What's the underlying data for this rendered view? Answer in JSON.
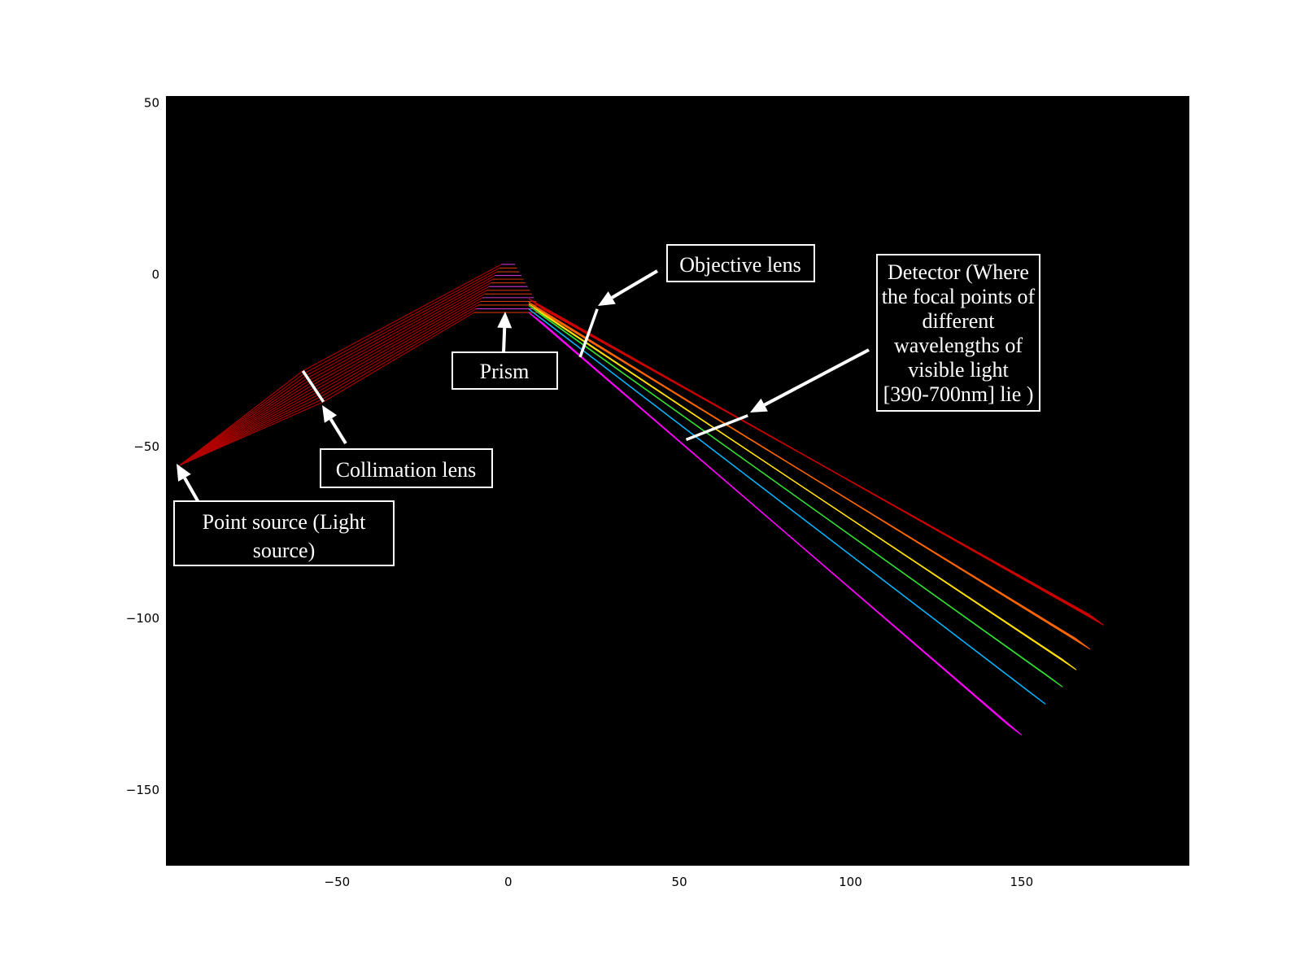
{
  "chart_data": {
    "type": "scatter",
    "title": "",
    "xlabel": "",
    "ylabel": "",
    "xlim": [
      -100,
      199
    ],
    "ylim": [
      -172,
      52
    ],
    "xticks": [
      "−50",
      "0",
      "50",
      "100",
      "150"
    ],
    "yticks": [
      "50",
      "0",
      "−50",
      "−100",
      "−150"
    ],
    "background": "#000000",
    "source_point": [
      -96,
      -55.5
    ],
    "collimation_lens": [
      [
        -60,
        -28
      ],
      [
        -54,
        -37
      ]
    ],
    "prism": {
      "apex": [
        0,
        3
      ],
      "base_y": -11
    },
    "objective_lens": [
      [
        21,
        -24
      ],
      [
        26,
        -10
      ]
    ],
    "detector": [
      [
        52,
        -48
      ],
      [
        70,
        -41
      ]
    ],
    "beams": [
      {
        "color": "#cc0000",
        "start": [
          10,
          -10
        ],
        "end": [
          174,
          -100
        ]
      },
      {
        "color": "#ff6600",
        "start": [
          10,
          -11
        ],
        "end": [
          170,
          -107
        ]
      },
      {
        "color": "#ffdd00",
        "start": [
          10,
          -11.5
        ],
        "end": [
          166,
          -113
        ]
      },
      {
        "color": "#33dd33",
        "start": [
          10,
          -12
        ],
        "end": [
          162,
          -118
        ]
      },
      {
        "color": "#00b4ff",
        "start": [
          10,
          -13
        ],
        "end": [
          157,
          -123
        ]
      },
      {
        "color": "#ff00ff",
        "start": [
          10,
          -14
        ],
        "end": [
          150,
          -132
        ]
      }
    ],
    "annotations": [
      {
        "id": "point-source",
        "text": [
          "Point source (Light",
          "source)"
        ]
      },
      {
        "id": "collimation-lens",
        "text": [
          "Collimation lens"
        ]
      },
      {
        "id": "prism",
        "text": [
          "Prism"
        ]
      },
      {
        "id": "objective-lens",
        "text": [
          "Objective lens"
        ]
      },
      {
        "id": "detector",
        "text": [
          "Detector (Where",
          "the focal points of",
          "different",
          "wavelengths of",
          "visible light",
          "[390-700nm] lie )"
        ]
      }
    ]
  }
}
